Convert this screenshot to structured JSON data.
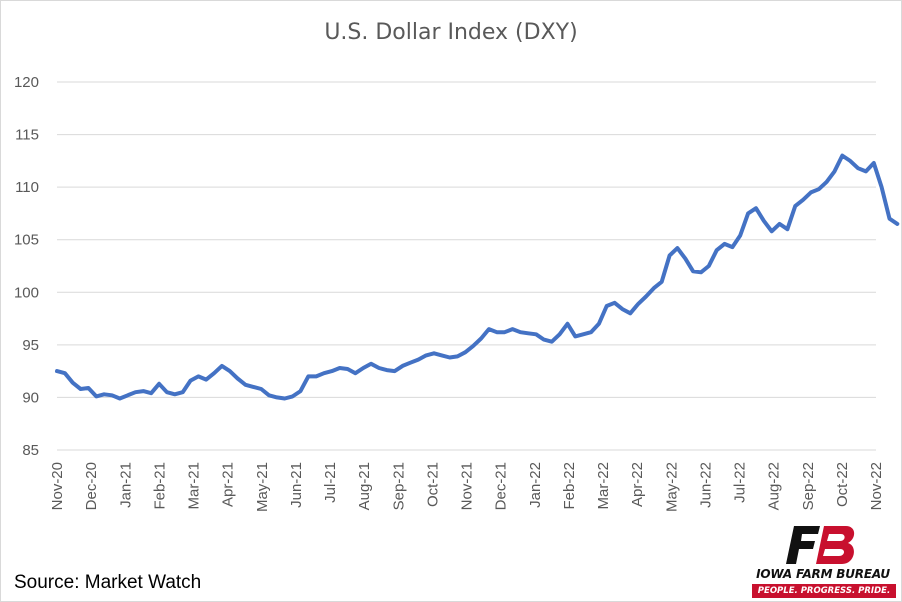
{
  "chart_data": {
    "type": "line",
    "title": "U.S. Dollar Index (DXY)",
    "xlabel": "",
    "ylabel": "",
    "ylim": [
      85,
      120
    ],
    "yticks": [
      85,
      90,
      95,
      100,
      105,
      110,
      115,
      120
    ],
    "grid": "horizontal",
    "legend": "none",
    "line_color": "#4472c4",
    "x_ticks": [
      "Nov-20",
      "Dec-20",
      "Jan-21",
      "Feb-21",
      "Mar-21",
      "Apr-21",
      "May-21",
      "Jun-21",
      "Jul-21",
      "Aug-21",
      "Sep-21",
      "Oct-21",
      "Nov-21",
      "Dec-21",
      "Jan-22",
      "Feb-22",
      "Mar-22",
      "Apr-22",
      "May-22",
      "Jun-22",
      "Jul-22",
      "Aug-22",
      "Sep-22",
      "Oct-22",
      "Nov-22"
    ],
    "series": [
      {
        "x": [
          "2020-11-01",
          "2020-11-08",
          "2020-11-15",
          "2020-11-22",
          "2020-11-29",
          "2020-12-06",
          "2020-12-13",
          "2020-12-20",
          "2020-12-27",
          "2021-01-03",
          "2021-01-10",
          "2021-01-17",
          "2021-01-24",
          "2021-01-31",
          "2021-02-07",
          "2021-02-14",
          "2021-02-21",
          "2021-02-28",
          "2021-03-07",
          "2021-03-14",
          "2021-03-21",
          "2021-03-28",
          "2021-04-04",
          "2021-04-11",
          "2021-04-18",
          "2021-04-25",
          "2021-05-02",
          "2021-05-09",
          "2021-05-16",
          "2021-05-23",
          "2021-05-30",
          "2021-06-06",
          "2021-06-13",
          "2021-06-20",
          "2021-06-27",
          "2021-07-04",
          "2021-07-11",
          "2021-07-18",
          "2021-07-25",
          "2021-08-01",
          "2021-08-08",
          "2021-08-15",
          "2021-08-22",
          "2021-08-29",
          "2021-09-05",
          "2021-09-12",
          "2021-09-19",
          "2021-09-26",
          "2021-10-03",
          "2021-10-10",
          "2021-10-17",
          "2021-10-24",
          "2021-10-31",
          "2021-11-07",
          "2021-11-14",
          "2021-11-21",
          "2021-11-28",
          "2021-12-05",
          "2021-12-12",
          "2021-12-19",
          "2021-12-26",
          "2022-01-02",
          "2022-01-09",
          "2022-01-16",
          "2022-01-23",
          "2022-01-30",
          "2022-02-06",
          "2022-02-13",
          "2022-02-20",
          "2022-02-27",
          "2022-03-06",
          "2022-03-13",
          "2022-03-20",
          "2022-03-27",
          "2022-04-03",
          "2022-04-10",
          "2022-04-17",
          "2022-04-24",
          "2022-05-01",
          "2022-05-08",
          "2022-05-15",
          "2022-05-22",
          "2022-05-29",
          "2022-06-05",
          "2022-06-12",
          "2022-06-19",
          "2022-06-26",
          "2022-07-03",
          "2022-07-10",
          "2022-07-17",
          "2022-07-24",
          "2022-07-31",
          "2022-08-07",
          "2022-08-14",
          "2022-08-21",
          "2022-08-28",
          "2022-09-04",
          "2022-09-11",
          "2022-09-18",
          "2022-09-25",
          "2022-10-02",
          "2022-10-09",
          "2022-10-16",
          "2022-10-23",
          "2022-10-30",
          "2022-11-06",
          "2022-11-13",
          "2022-11-20"
        ],
        "y": [
          92.5,
          92.3,
          91.4,
          90.8,
          90.9,
          90.1,
          90.3,
          90.2,
          89.9,
          90.2,
          90.5,
          90.6,
          90.4,
          91.3,
          90.5,
          90.3,
          90.5,
          91.6,
          92.0,
          91.7,
          92.3,
          93.0,
          92.5,
          91.8,
          91.2,
          91.0,
          90.8,
          90.2,
          90.0,
          89.9,
          90.1,
          90.6,
          92.0,
          92.0,
          92.3,
          92.5,
          92.8,
          92.7,
          92.3,
          92.8,
          93.2,
          92.8,
          92.6,
          92.5,
          93.0,
          93.3,
          93.6,
          94.0,
          94.2,
          94.0,
          93.8,
          93.9,
          94.3,
          94.9,
          95.6,
          96.5,
          96.2,
          96.2,
          96.5,
          96.2,
          96.1,
          96.0,
          95.5,
          95.3,
          96.0,
          97.0,
          95.8,
          96.0,
          96.2,
          97.0,
          98.7,
          99.0,
          98.4,
          98.0,
          98.9,
          99.6,
          100.4,
          101.0,
          103.5,
          104.2,
          103.2,
          102.0,
          101.9,
          102.5,
          104.0,
          104.6,
          104.3,
          105.4,
          107.5,
          108.0,
          106.8,
          105.8,
          106.5,
          106.0,
          108.2,
          108.8,
          109.5,
          109.8,
          110.5,
          111.5,
          113.0,
          112.5,
          111.8,
          111.5,
          112.3,
          110.0,
          107.0,
          106.5
        ]
      }
    ]
  },
  "source_label": "Source: Market Watch",
  "logo": {
    "name": "IOWA FARM BUREAU",
    "tagline": "PEOPLE. PROGRESS. PRIDE.",
    "brand_red": "#c8102e"
  }
}
